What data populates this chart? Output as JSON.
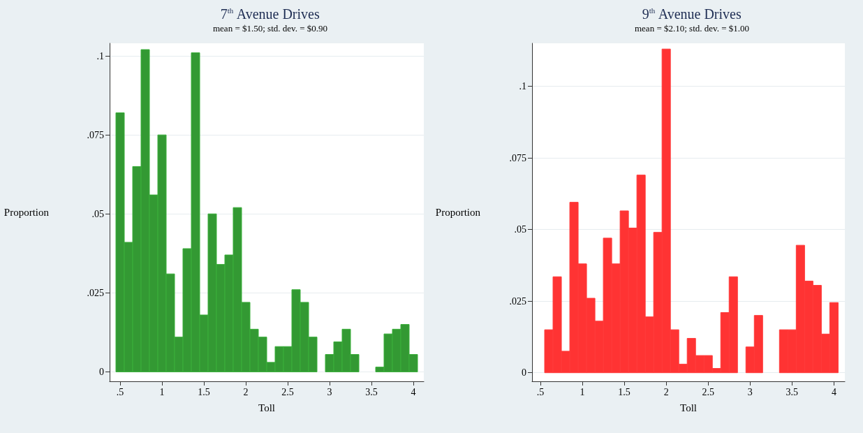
{
  "chart_data": [
    {
      "type": "histogram",
      "title": "7$^{th}$ Avenue Drives",
      "subtitle": "mean = $1.50; std. dev. = $0.90",
      "xlabel": "Toll",
      "ylabel": "Proportion",
      "color": "#339933",
      "bins": [
        0.45,
        0.55,
        0.65,
        0.75,
        0.85,
        0.95,
        1.05,
        1.15,
        1.25,
        1.35,
        1.45,
        1.55,
        1.65,
        1.75,
        1.85,
        1.95,
        2.05,
        2.15,
        2.25,
        2.35,
        2.45,
        2.55,
        2.65,
        2.75,
        2.85,
        2.95,
        3.05,
        3.15,
        3.25,
        3.35,
        3.45,
        3.55,
        3.65,
        3.75,
        3.85,
        3.95,
        4.05
      ],
      "values": [
        0.082,
        0.041,
        0.065,
        0.102,
        0.056,
        0.075,
        0.031,
        0.011,
        0.039,
        0.101,
        0.018,
        0.05,
        0.034,
        0.037,
        0.052,
        0.022,
        0.0135,
        0.011,
        0.003,
        0.008,
        0.008,
        0.026,
        0.022,
        0.011,
        0,
        0.0055,
        0.0095,
        0.0135,
        0.0055,
        0,
        0,
        0.0015,
        0.012,
        0.0135,
        0.015,
        0.0055
      ],
      "xlim": [
        0.375,
        4.125
      ],
      "ylim": [
        -0.003,
        0.104
      ],
      "xticks": [
        {
          "value": 0.5,
          "label": ".5"
        },
        1,
        1.5,
        2,
        2.5,
        3,
        3.5,
        4
      ],
      "yticks": [
        0,
        {
          "value": 0.025,
          "label": ".025"
        },
        {
          "value": 0.05,
          "label": ".05"
        },
        {
          "value": 0.075,
          "label": ".075"
        },
        {
          "value": 0.1,
          "label": ".1"
        }
      ],
      "grid": "y"
    },
    {
      "type": "histogram",
      "title": "9$^{th}$ Avenue Drives",
      "subtitle": "mean = $2.10; std. dev. = $1.00",
      "xlabel": "Toll",
      "ylabel": "Proportion",
      "color": "#ff3333",
      "bins": [
        0.55,
        0.65,
        0.75,
        0.85,
        0.95,
        1.05,
        1.15,
        1.25,
        1.35,
        1.45,
        1.55,
        1.65,
        1.75,
        1.85,
        1.95,
        2.05,
        2.15,
        2.25,
        2.35,
        2.45,
        2.55,
        2.65,
        2.75,
        2.85,
        2.95,
        3.05,
        3.15,
        3.25,
        3.35,
        3.45,
        3.55,
        3.65,
        3.75,
        3.85,
        3.95,
        4.05
      ],
      "values": [
        0.015,
        0.0335,
        0.0075,
        0.0595,
        0.038,
        0.026,
        0.018,
        0.047,
        0.038,
        0.0565,
        0.0505,
        0.069,
        0.0195,
        0.049,
        0.113,
        0.015,
        0.003,
        0.012,
        0.006,
        0.006,
        0.0015,
        0.021,
        0.0335,
        0,
        0.009,
        0.02,
        0,
        0,
        0.015,
        0.015,
        0.0445,
        0.032,
        0.0305,
        0.0135,
        0.0245
      ],
      "xlim": [
        0.4,
        4.13
      ],
      "ylim": [
        -0.003,
        0.115
      ],
      "xticks": [
        {
          "value": 0.5,
          "label": ".5"
        },
        1,
        1.5,
        2,
        2.5,
        3,
        3.5,
        4
      ],
      "yticks": [
        0,
        {
          "value": 0.025,
          "label": ".025"
        },
        {
          "value": 0.05,
          "label": ".05"
        },
        {
          "value": 0.075,
          "label": ".075"
        },
        {
          "value": 0.1,
          "label": ".1"
        }
      ],
      "grid": "y"
    }
  ]
}
